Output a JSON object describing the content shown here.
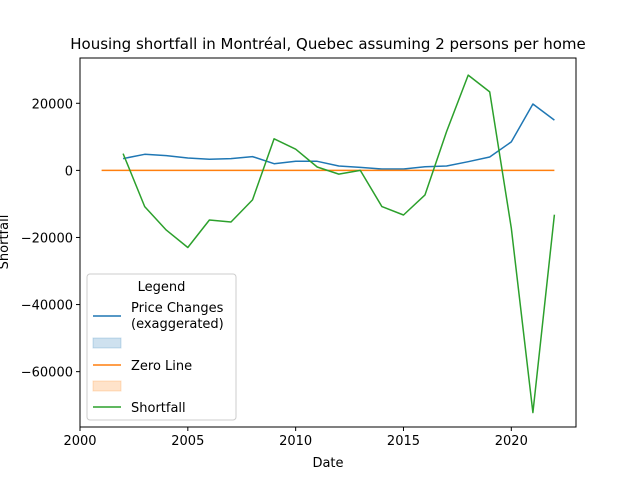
{
  "chart_data": {
    "type": "line",
    "title": "Housing shortfall in Montréal, Quebec assuming 2 persons per home",
    "xlabel": "Date",
    "ylabel": "Shortfall",
    "xlim": [
      2000,
      2023
    ],
    "ylim": [
      -76500,
      33500
    ],
    "x_ticks": [
      2000,
      2005,
      2010,
      2015,
      2020
    ],
    "y_ticks": [
      -60000,
      -40000,
      -20000,
      0,
      20000
    ],
    "grid": false,
    "legend": {
      "title": "Legend",
      "placement": "lower-left",
      "entries": [
        {
          "label": "Price Changes\n(exaggerated)",
          "kind": "line",
          "color": "#1f77b4"
        },
        {
          "label": "",
          "kind": "patch",
          "color": "#1f77b4"
        },
        {
          "label": "Zero Line",
          "kind": "line",
          "color": "#ff7f0e"
        },
        {
          "label": "",
          "kind": "patch",
          "color": "#ff7f0e"
        },
        {
          "label": "Shortfall",
          "kind": "line",
          "color": "#2ca02c"
        }
      ]
    },
    "series": [
      {
        "name": "Price Changes\n(exaggerated)",
        "color": "#1f77b4",
        "x": [
          2002,
          2003,
          2004,
          2005,
          2006,
          2007,
          2008,
          2009,
          2010,
          2011,
          2012,
          2013,
          2014,
          2015,
          2016,
          2017,
          2018,
          2019,
          2020,
          2021,
          2022
        ],
        "values": [
          3500,
          4800,
          4400,
          3700,
          3300,
          3500,
          4100,
          2000,
          2700,
          2700,
          1300,
          900,
          400,
          400,
          1100,
          1300,
          2600,
          4000,
          8500,
          19800,
          15000
        ]
      },
      {
        "name": "Zero Line",
        "color": "#ff7f0e",
        "x": [
          2001,
          2022
        ],
        "values": [
          0,
          0
        ]
      },
      {
        "name": "Shortfall",
        "color": "#2ca02c",
        "x": [
          2002,
          2003,
          2004,
          2005,
          2006,
          2007,
          2008,
          2009,
          2010,
          2011,
          2012,
          2013,
          2014,
          2015,
          2016,
          2017,
          2018,
          2019,
          2020,
          2021,
          2022
        ],
        "values": [
          5000,
          -10800,
          -17800,
          -23000,
          -14800,
          -15400,
          -8800,
          9400,
          6300,
          1000,
          -1100,
          0,
          -10800,
          -13300,
          -7300,
          11600,
          28400,
          23400,
          -17200,
          -72200,
          -13200
        ]
      }
    ]
  }
}
